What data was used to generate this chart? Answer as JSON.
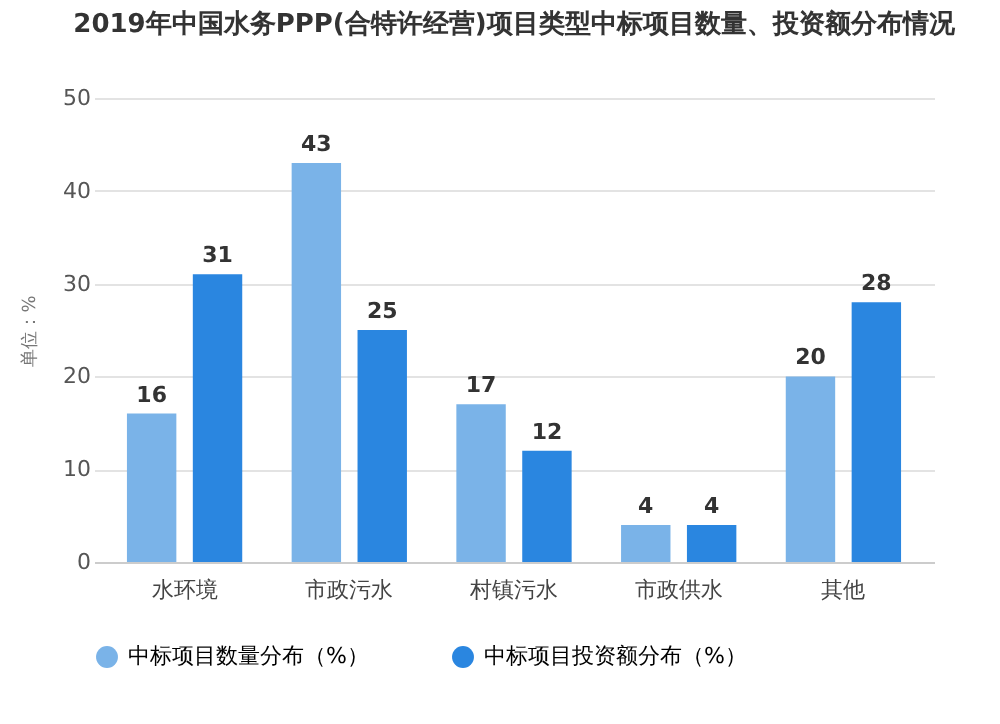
{
  "chart_data": {
    "type": "bar",
    "title": "2019年中国水务PPP(合特许经营)项目类型中标项目数量、投资额分布情况",
    "ylabel": "单位：%",
    "categories": [
      "水环境",
      "市政污水",
      "村镇污水",
      "市政供水",
      "其他"
    ],
    "series": [
      {
        "name": "中标项目数量分布（%）",
        "color": "#7ab3e8",
        "values": [
          16,
          43,
          17,
          4,
          20
        ]
      },
      {
        "name": "中标项目投资额分布（%）",
        "color": "#2a86e0",
        "values": [
          31,
          25,
          12,
          4,
          28
        ]
      }
    ],
    "ylim": [
      0,
      50
    ],
    "yticks": [
      0,
      10,
      20,
      30,
      40,
      50
    ],
    "grid": "y",
    "legend": "bottom",
    "data_labels": true
  }
}
